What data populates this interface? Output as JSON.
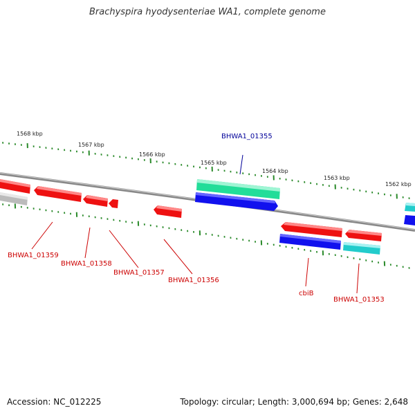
{
  "title": "Brachyspira hyodysenteriae WA1, complete genome",
  "accession": "Accession: NC_012225",
  "stats": "Topology: circular; Length: 3,000,694 bp; Genes: 2,648",
  "colors": {
    "backbone": "#888888",
    "tick": "#2a8a2a",
    "gene_forward": "#ee1111",
    "gene_reverse": "#1111ee",
    "rna": "#22dd99",
    "misc": "#22cccc",
    "pseudo": "#bbbbbb",
    "label_red": "#cc0000",
    "label_blue": "#000099"
  },
  "ticks": [
    {
      "label": "1568 kbp"
    },
    {
      "label": "1567 kbp"
    },
    {
      "label": "1566 kbp"
    },
    {
      "label": "1565 kbp"
    },
    {
      "label": "1564 kbp"
    },
    {
      "label": "1563 kbp"
    },
    {
      "label": "1562 kbp"
    }
  ],
  "gene_labels": [
    {
      "text": "BHWA1_01355",
      "color": "blue"
    },
    {
      "text": "BHWA1_01359",
      "color": "red"
    },
    {
      "text": "BHWA1_01358",
      "color": "red"
    },
    {
      "text": "BHWA1_01357",
      "color": "red"
    },
    {
      "text": "BHWA1_01356",
      "color": "red"
    },
    {
      "text": "cbiB",
      "color": "red"
    },
    {
      "text": "BHWA1_01353",
      "color": "red"
    }
  ]
}
